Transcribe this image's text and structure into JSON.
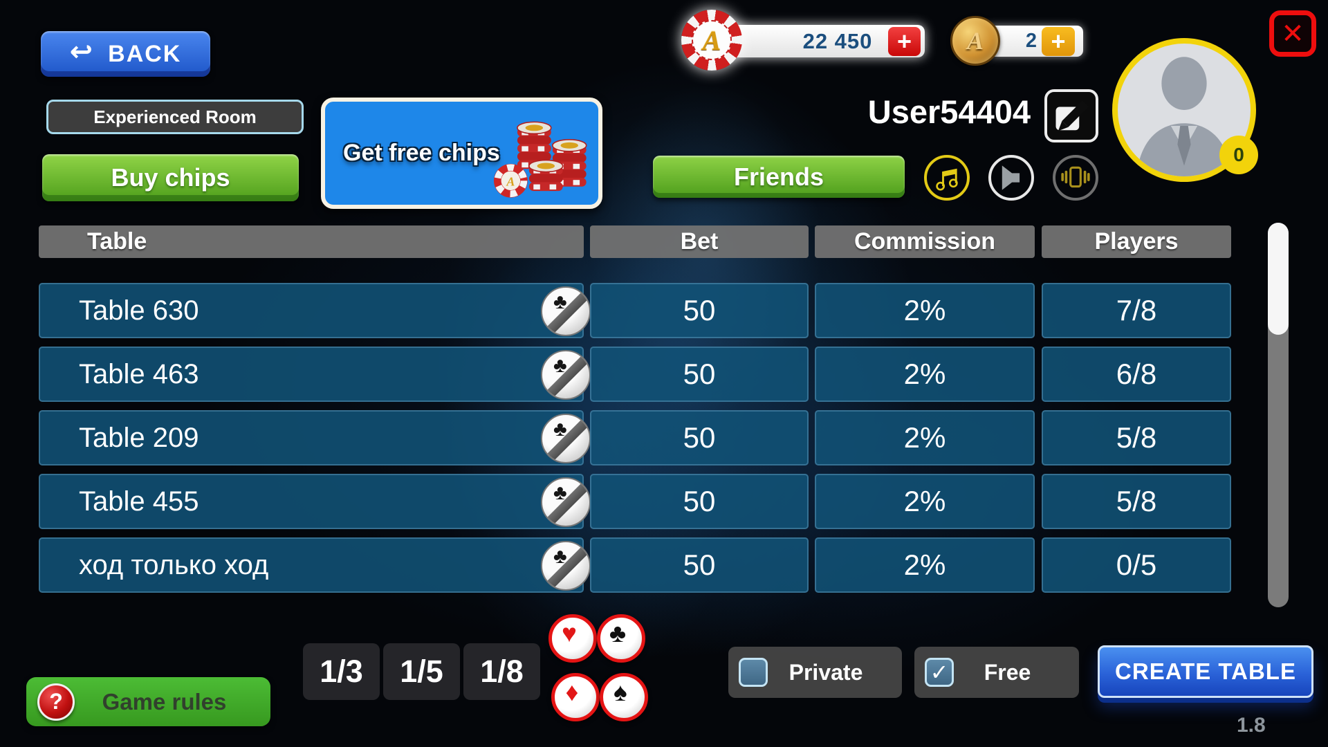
{
  "header": {
    "back_label": "BACK",
    "room_label": "Experienced Room",
    "buy_chips_label": "Buy chips",
    "get_free_chips_label": "Get free chips",
    "chips": {
      "value": "22 450",
      "add_label": "+"
    },
    "coins": {
      "value": "2",
      "add_label": "+"
    },
    "username": "User54404",
    "friends_label": "Friends",
    "avatar_badge": "0"
  },
  "table": {
    "columns": [
      "Table",
      "Bet",
      "Commission",
      "Players"
    ],
    "rows": [
      {
        "name": "Table 630",
        "bet": "50",
        "commission": "2%",
        "players": "7/8"
      },
      {
        "name": "Table 463",
        "bet": "50",
        "commission": "2%",
        "players": "6/8"
      },
      {
        "name": "Table 209",
        "bet": "50",
        "commission": "2%",
        "players": "5/8"
      },
      {
        "name": "Table 455",
        "bet": "50",
        "commission": "2%",
        "players": "5/8"
      },
      {
        "name": "ход только ход",
        "bet": "50",
        "commission": "2%",
        "players": "0/5"
      }
    ]
  },
  "footer": {
    "game_rules": {
      "label": "Game rules",
      "question_glyph": "?"
    },
    "filters": [
      "1/3",
      "1/5",
      "1/8"
    ],
    "suits": [
      {
        "name": "hearts",
        "glyph": "♥",
        "color": "#e21717"
      },
      {
        "name": "clubs",
        "glyph": "♣",
        "color": "#101010"
      },
      {
        "name": "diamonds",
        "glyph": "♦",
        "color": "#e21717"
      },
      {
        "name": "spades",
        "glyph": "♠",
        "color": "#101010"
      }
    ],
    "private": {
      "label": "Private",
      "checked": false
    },
    "free": {
      "label": "Free",
      "checked": true
    },
    "create_table_label": "CREATE TABLE",
    "version": "1.8"
  },
  "icons": {
    "back_arrow_glyph": "↩",
    "close_glyph": "✕",
    "check_glyph": "✓",
    "plus_glyph": "+",
    "row_card_glyph": "♣",
    "currency_letter": "A",
    "music": "music-notes-icon",
    "speaker": "speaker-icon",
    "vibrate": "phone-vibrate-icon",
    "edit": "pencil-edit-icon",
    "avatar": "person-silhouette"
  },
  "colors": {
    "accent_blue": "#1e87e9",
    "button_green": "#46ae27",
    "row_blue": "#115276",
    "header_gray": "#707070",
    "gold": "#f2d30b",
    "red": "#e31616"
  }
}
